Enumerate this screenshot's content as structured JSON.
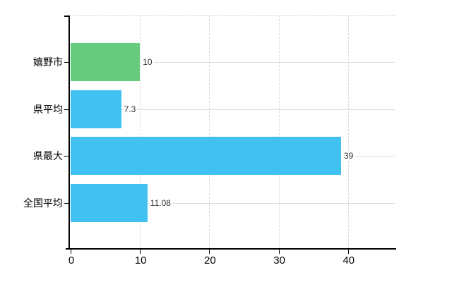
{
  "chart_data": {
    "type": "bar",
    "orientation": "horizontal",
    "title": "",
    "xlabel": "",
    "ylabel": "",
    "categories": [
      "嬉野市",
      "県平均",
      "県最大",
      "全国平均"
    ],
    "values": [
      10,
      7.3,
      39,
      11.08
    ],
    "value_labels": [
      "10",
      "7.3",
      "39",
      "11.08"
    ],
    "series": [
      {
        "name": "",
        "values": [
          10,
          7.3,
          39,
          11.08
        ],
        "bar_colors": [
          "#66cb7c",
          "#41c1f0",
          "#41c1f0",
          "#41c1f0"
        ]
      }
    ],
    "x_ticks": [
      "0",
      "10",
      "20",
      "30",
      "40"
    ],
    "x_tick_values": [
      0,
      10,
      20,
      30,
      40
    ],
    "xlim": [
      0,
      46.7
    ],
    "grid": true,
    "legend": "none",
    "highlight_color": "#66cb7c",
    "default_bar_color": "#41c1f0",
    "axis_color": "#000000",
    "gridline_color": "#d9d9d9",
    "value_label_color": "#333333",
    "background_color": "#ffffff"
  }
}
